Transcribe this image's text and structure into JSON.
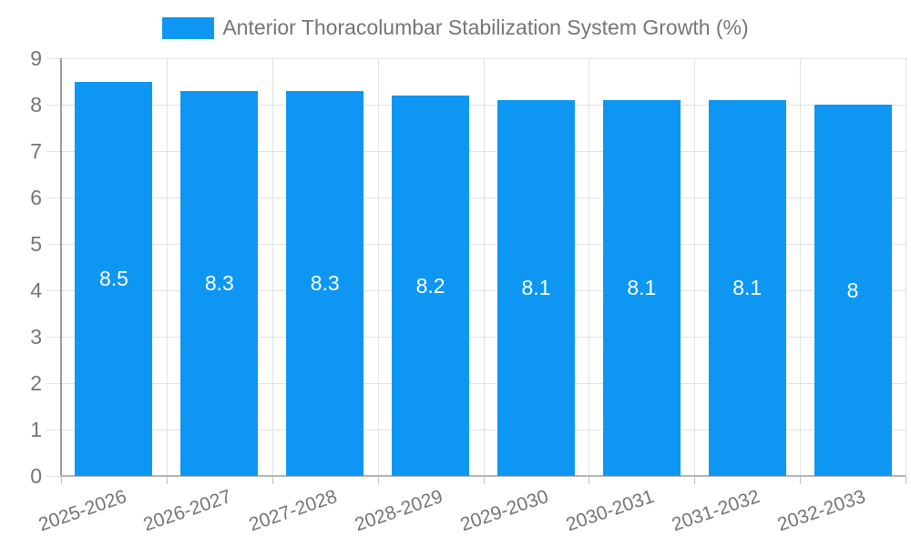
{
  "chart_data": {
    "type": "bar",
    "title": "Anterior Thoracolumbar Stabilization System Growth (%)",
    "legend": {
      "position": "top"
    },
    "categories": [
      "2025-2026",
      "2026-2027",
      "2027-2028",
      "2028-2029",
      "2029-2030",
      "2030-2031",
      "2031-2032",
      "2032-2033"
    ],
    "values": [
      8.5,
      8.3,
      8.3,
      8.2,
      8.1,
      8.1,
      8.1,
      8
    ],
    "value_labels": [
      "8.5",
      "8.3",
      "8.3",
      "8.2",
      "8.1",
      "8.1",
      "8.1",
      "8"
    ],
    "xlabel": "",
    "ylabel": "",
    "ylim": [
      0,
      9
    ],
    "yticks": [
      0,
      1,
      2,
      3,
      4,
      5,
      6,
      7,
      8,
      9
    ],
    "grid": true,
    "colors": {
      "bar": "#0d97f2",
      "value_label": "#ffffff",
      "axis_label": "#757575",
      "gridline": "#e2e2e2",
      "tick": "#c2c2c2",
      "axis_line_y": "#9a9a9a",
      "axis_line_x": "#b3b3b3",
      "background": "#ffffff"
    }
  }
}
